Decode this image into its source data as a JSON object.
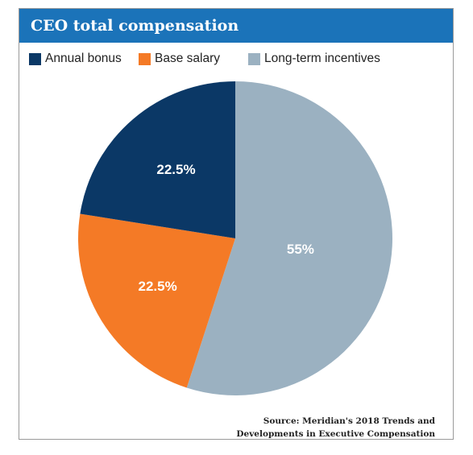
{
  "chart_data": {
    "type": "pie",
    "title": "CEO total compensation",
    "series": [
      {
        "name": "Long-term incentives",
        "value": 55,
        "label": "55%",
        "color": "#9bb1c1"
      },
      {
        "name": "Base salary",
        "value": 22.5,
        "label": "22.5%",
        "color": "#f47a26"
      },
      {
        "name": "Annual bonus",
        "value": 22.5,
        "label": "22.5%",
        "color": "#0b3866"
      }
    ],
    "legend": {
      "placement": "top-left",
      "entries": [
        "Annual bonus",
        "Base salary",
        "Long-term incentives"
      ]
    },
    "start": "top",
    "direction": "clockwise"
  },
  "colors": {
    "title_bar": "#1b73b9",
    "frame_border": "#9a9a9a"
  },
  "source": {
    "line1": "Source: Meridian's 2018 Trends and",
    "line2": "Developments in Executive Compensation"
  }
}
